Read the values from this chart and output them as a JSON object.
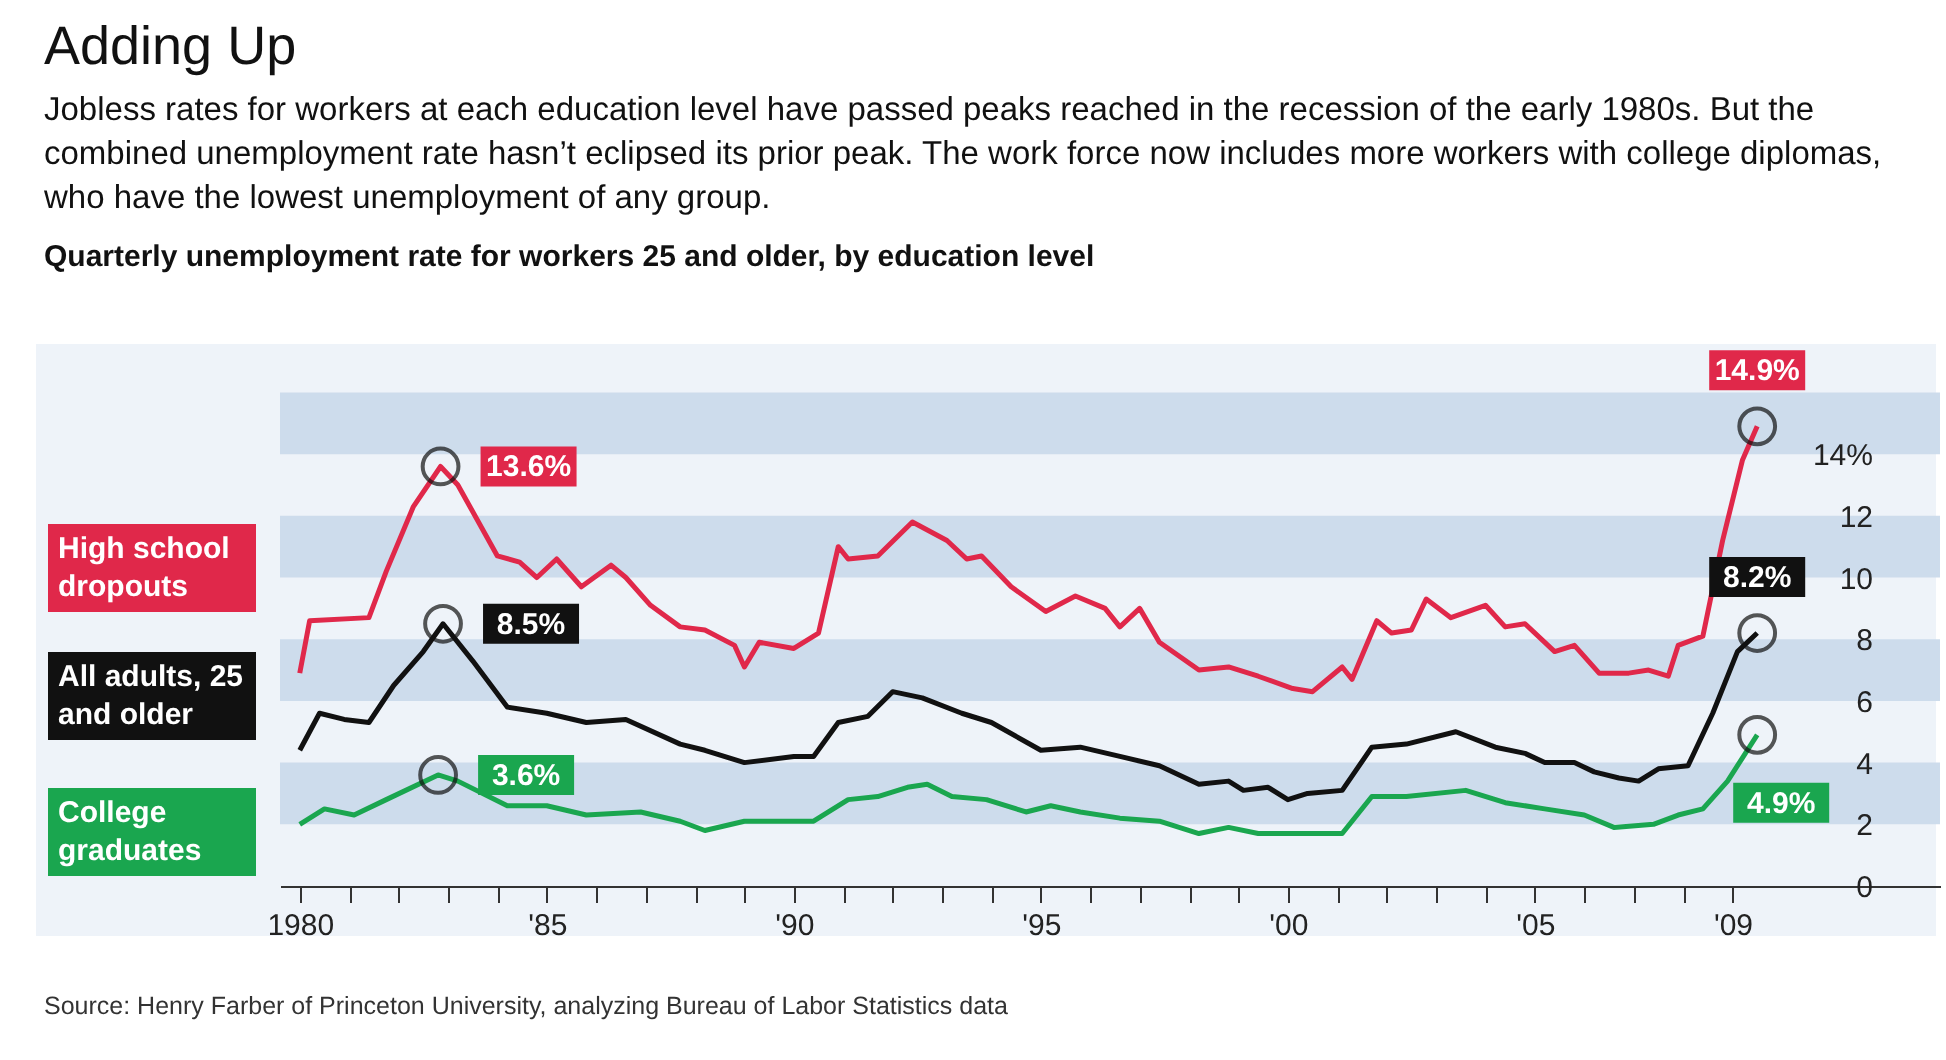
{
  "chart_data": {
    "type": "line",
    "title": "Adding Up",
    "subtitle": "Jobless rates for workers at each education level have passed peaks reached in the recession of the early 1980s. But the combined unemployment rate hasn’t eclipsed its prior peak. The work force now includes more workers with college diplomas, who have the lowest unemployment of any group.",
    "ylabel": "Quarterly unemployment rate for workers 25 and older, by education level",
    "annotations": [
      "Source: Henry Farber of Princeton University, analyzing Bureau of Labor Statistics data"
    ],
    "xlim": [
      1979.6,
      2013.2
    ],
    "ylim": [
      0,
      17.7
    ],
    "xticks": [
      {
        "value": 1980,
        "label": "1980"
      },
      {
        "value": 1981,
        "label": null
      },
      {
        "value": 1982,
        "label": null
      },
      {
        "value": 1983,
        "label": null
      },
      {
        "value": 1984,
        "label": null
      },
      {
        "value": 1985,
        "label": "'85"
      },
      {
        "value": 1986,
        "label": null
      },
      {
        "value": 1987,
        "label": null
      },
      {
        "value": 1988,
        "label": null
      },
      {
        "value": 1989,
        "label": null
      },
      {
        "value": 1990,
        "label": "'90"
      },
      {
        "value": 1991,
        "label": null
      },
      {
        "value": 1992,
        "label": null
      },
      {
        "value": 1993,
        "label": null
      },
      {
        "value": 1994,
        "label": null
      },
      {
        "value": 1995,
        "label": "'95"
      },
      {
        "value": 1996,
        "label": null
      },
      {
        "value": 1997,
        "label": null
      },
      {
        "value": 1998,
        "label": null
      },
      {
        "value": 1999,
        "label": null
      },
      {
        "value": 2000,
        "label": "'00"
      },
      {
        "value": 2001,
        "label": null
      },
      {
        "value": 2002,
        "label": null
      },
      {
        "value": 2003,
        "label": null
      },
      {
        "value": 2004,
        "label": null
      },
      {
        "value": 2005,
        "label": "'05"
      },
      {
        "value": 2006,
        "label": null
      },
      {
        "value": 2007,
        "label": null
      },
      {
        "value": 2008,
        "label": null
      },
      {
        "value": 2009,
        "label": "'09"
      }
    ],
    "yticks": [
      0,
      2,
      4,
      6,
      8,
      10,
      12,
      {
        "value": 14,
        "label": "14%"
      }
    ],
    "bands": [
      {
        "axis": "y",
        "from": 2,
        "to": 4,
        "color": "#cddcec"
      },
      {
        "axis": "y",
        "from": 6,
        "to": 8,
        "color": "#cddcec"
      },
      {
        "axis": "y",
        "from": 10,
        "to": 12,
        "color": "#cddcec"
      },
      {
        "axis": "y",
        "from": 14,
        "to": 16,
        "color": "#cddcec"
      }
    ],
    "legend": "left",
    "series": [
      {
        "name": "High school dropouts",
        "color": "#e0284a",
        "x": [
          1980.0,
          1980.2,
          1981.4,
          1981.75,
          1982.3,
          1982.85,
          1983.2,
          1984.0,
          1984.45,
          1984.8,
          1985.2,
          1985.7,
          1986.3,
          1986.6,
          1987.1,
          1987.7,
          1988.2,
          1988.8,
          1989.0,
          1989.3,
          1990.0,
          1990.5,
          1990.9,
          1991.1,
          1991.7,
          1992.4,
          1993.1,
          1993.5,
          1993.8,
          1994.4,
          1995.1,
          1995.7,
          1996.3,
          1996.6,
          1997.0,
          1997.4,
          1998.2,
          1998.8,
          1999.4,
          2000.1,
          2000.5,
          2001.1,
          2001.3,
          2001.8,
          2002.1,
          2002.5,
          2002.8,
          2003.3,
          2004.0,
          2004.4,
          2004.8,
          2005.4,
          2005.8,
          2006.3,
          2006.9,
          2007.3,
          2007.7,
          2007.9,
          2008.4,
          2008.8,
          2009.2,
          2009.5
        ],
        "values": [
          6.9,
          8.6,
          8.7,
          10.2,
          12.3,
          13.6,
          13.0,
          10.7,
          10.5,
          10.0,
          10.6,
          9.7,
          10.4,
          10.0,
          9.1,
          8.4,
          8.3,
          7.8,
          7.1,
          7.9,
          7.7,
          8.2,
          11.0,
          10.6,
          10.7,
          11.8,
          11.2,
          10.6,
          10.7,
          9.7,
          8.9,
          9.4,
          9.0,
          8.4,
          9.0,
          7.9,
          7.0,
          7.1,
          6.8,
          6.4,
          6.3,
          7.1,
          6.7,
          8.6,
          8.2,
          8.3,
          9.3,
          8.7,
          9.1,
          8.4,
          8.5,
          7.6,
          7.8,
          6.9,
          6.9,
          7.0,
          6.8,
          7.8,
          8.1,
          11.2,
          13.8,
          14.9
        ],
        "value_labels": [
          null,
          null,
          null,
          null,
          null,
          "13.6%",
          null,
          null,
          null,
          null,
          null,
          null,
          null,
          null,
          null,
          null,
          null,
          null,
          null,
          null,
          null,
          null,
          null,
          null,
          null,
          null,
          null,
          null,
          null,
          null,
          null,
          null,
          null,
          null,
          null,
          null,
          null,
          null,
          null,
          null,
          null,
          null,
          null,
          null,
          null,
          null,
          null,
          null,
          null,
          null,
          null,
          null,
          null,
          null,
          null,
          null,
          null,
          null,
          null,
          null,
          null,
          "14.9%"
        ]
      },
      {
        "name": "All adults, 25 and older",
        "color": "#111111",
        "x": [
          1980.0,
          1980.4,
          1980.9,
          1981.4,
          1981.9,
          1982.5,
          1982.9,
          1983.5,
          1984.2,
          1985.0,
          1985.8,
          1986.6,
          1987.7,
          1988.2,
          1989.0,
          1990.0,
          1990.4,
          1990.9,
          1991.5,
          1992.0,
          1992.6,
          1993.4,
          1994.0,
          1995.0,
          1995.8,
          1996.6,
          1997.4,
          1998.2,
          1998.8,
          1999.1,
          1999.6,
          2000.0,
          2000.4,
          2001.1,
          2001.7,
          2002.4,
          2003.4,
          2004.2,
          2004.8,
          2005.2,
          2005.8,
          2006.2,
          2006.7,
          2007.1,
          2007.5,
          2008.1,
          2008.6,
          2009.1,
          2009.5
        ],
        "values": [
          4.4,
          5.6,
          5.4,
          5.3,
          6.5,
          7.6,
          8.5,
          7.3,
          5.8,
          5.6,
          5.3,
          5.4,
          4.6,
          4.4,
          4.0,
          4.2,
          4.2,
          5.3,
          5.5,
          6.3,
          6.1,
          5.6,
          5.3,
          4.4,
          4.5,
          4.2,
          3.9,
          3.3,
          3.4,
          3.1,
          3.2,
          2.8,
          3.0,
          3.1,
          4.5,
          4.6,
          5.0,
          4.5,
          4.3,
          4.0,
          4.0,
          3.7,
          3.5,
          3.4,
          3.8,
          3.9,
          5.6,
          7.6,
          8.2
        ],
        "value_labels": [
          null,
          null,
          null,
          null,
          null,
          null,
          "8.5%",
          null,
          null,
          null,
          null,
          null,
          null,
          null,
          null,
          null,
          null,
          null,
          null,
          null,
          null,
          null,
          null,
          null,
          null,
          null,
          null,
          null,
          null,
          null,
          null,
          null,
          null,
          null,
          null,
          null,
          null,
          null,
          null,
          null,
          null,
          null,
          null,
          null,
          null,
          null,
          null,
          null,
          "8.2%"
        ]
      },
      {
        "name": "College graduates",
        "color": "#1aa64f",
        "x": [
          1980.0,
          1980.5,
          1981.1,
          1981.75,
          1982.8,
          1983.2,
          1984.2,
          1985.0,
          1985.8,
          1986.9,
          1987.7,
          1988.2,
          1989.0,
          1990.0,
          1990.4,
          1991.1,
          1991.7,
          1992.3,
          1992.7,
          1993.2,
          1993.9,
          1994.7,
          1995.2,
          1995.8,
          1996.6,
          1997.4,
          1998.2,
          1998.8,
          1999.4,
          2000.1,
          2001.1,
          2001.7,
          2002.4,
          2003.6,
          2004.4,
          2005.2,
          2006.0,
          2006.6,
          2007.4,
          2007.9,
          2008.4,
          2008.9,
          2009.5
        ],
        "values": [
          2.0,
          2.5,
          2.3,
          2.8,
          3.6,
          3.4,
          2.6,
          2.6,
          2.3,
          2.4,
          2.1,
          1.8,
          2.1,
          2.1,
          2.1,
          2.8,
          2.9,
          3.2,
          3.3,
          2.9,
          2.8,
          2.4,
          2.6,
          2.4,
          2.2,
          2.1,
          1.7,
          1.9,
          1.7,
          1.7,
          1.7,
          2.9,
          2.9,
          3.1,
          2.7,
          2.5,
          2.3,
          1.9,
          2.0,
          2.3,
          2.5,
          3.4,
          4.9
        ],
        "value_labels": [
          null,
          null,
          null,
          null,
          "3.6%",
          null,
          null,
          null,
          null,
          null,
          null,
          null,
          null,
          null,
          null,
          null,
          null,
          null,
          null,
          null,
          null,
          null,
          null,
          null,
          null,
          null,
          null,
          null,
          null,
          null,
          null,
          null,
          null,
          null,
          null,
          null,
          null,
          null,
          null,
          null,
          null,
          null,
          "4.9%"
        ]
      }
    ]
  }
}
